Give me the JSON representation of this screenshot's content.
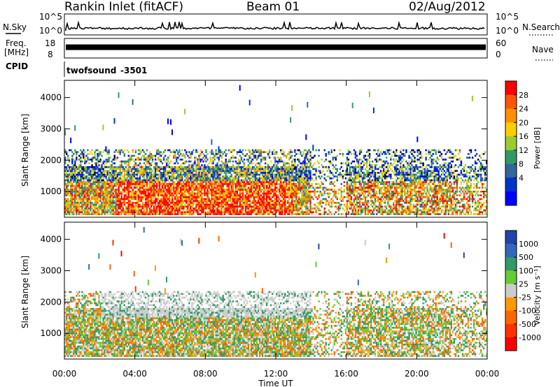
{
  "header": {
    "station": "Rankin Inlet (fitACF)",
    "beam": "Beam 01",
    "date": "02/Aug/2012"
  },
  "noise_panel": {
    "left_label": "N.Sky",
    "right_label": "N.Search",
    "left_ticks": [
      "10^5",
      "10^0"
    ],
    "right_ticks": [
      "10^5",
      "10^0"
    ]
  },
  "freq_panel": {
    "left_label_1": "Freq.",
    "left_label_2": "[MHz]",
    "right_label": "Nave",
    "left_ticks": [
      "18",
      "8"
    ],
    "right_ticks": [
      "60",
      "0"
    ],
    "level": 0.55
  },
  "cpid_panel": {
    "label": "CPID",
    "program": "twofsound",
    "id": "-3501"
  },
  "chart_data": [
    {
      "type": "heatmap",
      "name": "power",
      "ylabel": "Slant Range [km]",
      "xlabel": "",
      "x_ticks": [
        "00:00",
        "04:00",
        "08:00",
        "12:00",
        "16:00",
        "20:00",
        "00:00"
      ],
      "y_ticks": [
        1000,
        2000,
        3000,
        4000
      ],
      "ylim": [
        180,
        4550
      ],
      "xlim_hours": [
        0,
        24
      ],
      "colorbar": {
        "label": "Power [dB]",
        "ticks": [
          "28",
          "24",
          "20",
          "16",
          "12",
          "8",
          "4"
        ],
        "colors": [
          "#ff0000",
          "#ff5500",
          "#ff9000",
          "#ffcc00",
          "#99cc33",
          "#339966",
          "#336699",
          "#0033cc",
          "#0000ff"
        ]
      }
    },
    {
      "type": "heatmap",
      "name": "velocity",
      "ylabel": "Slant Range [km]",
      "xlabel": "Time UT",
      "x_ticks": [
        "00:00",
        "04:00",
        "08:00",
        "12:00",
        "16:00",
        "20:00",
        "00:00"
      ],
      "y_ticks": [
        1000,
        2000,
        3000,
        4000
      ],
      "ylim": [
        180,
        4550
      ],
      "xlim_hours": [
        0,
        24
      ],
      "colorbar": {
        "label": "Velocity [m s⁻¹]",
        "ticks": [
          "1000",
          "500",
          "100",
          "25",
          "-25",
          "-100",
          "-500",
          "-1000"
        ],
        "colors": [
          "#2244aa",
          "#3366bb",
          "#339966",
          "#66cc33",
          "#cccccc",
          "#ff9900",
          "#ff6600",
          "#ff3300",
          "#ff0000"
        ]
      }
    }
  ]
}
